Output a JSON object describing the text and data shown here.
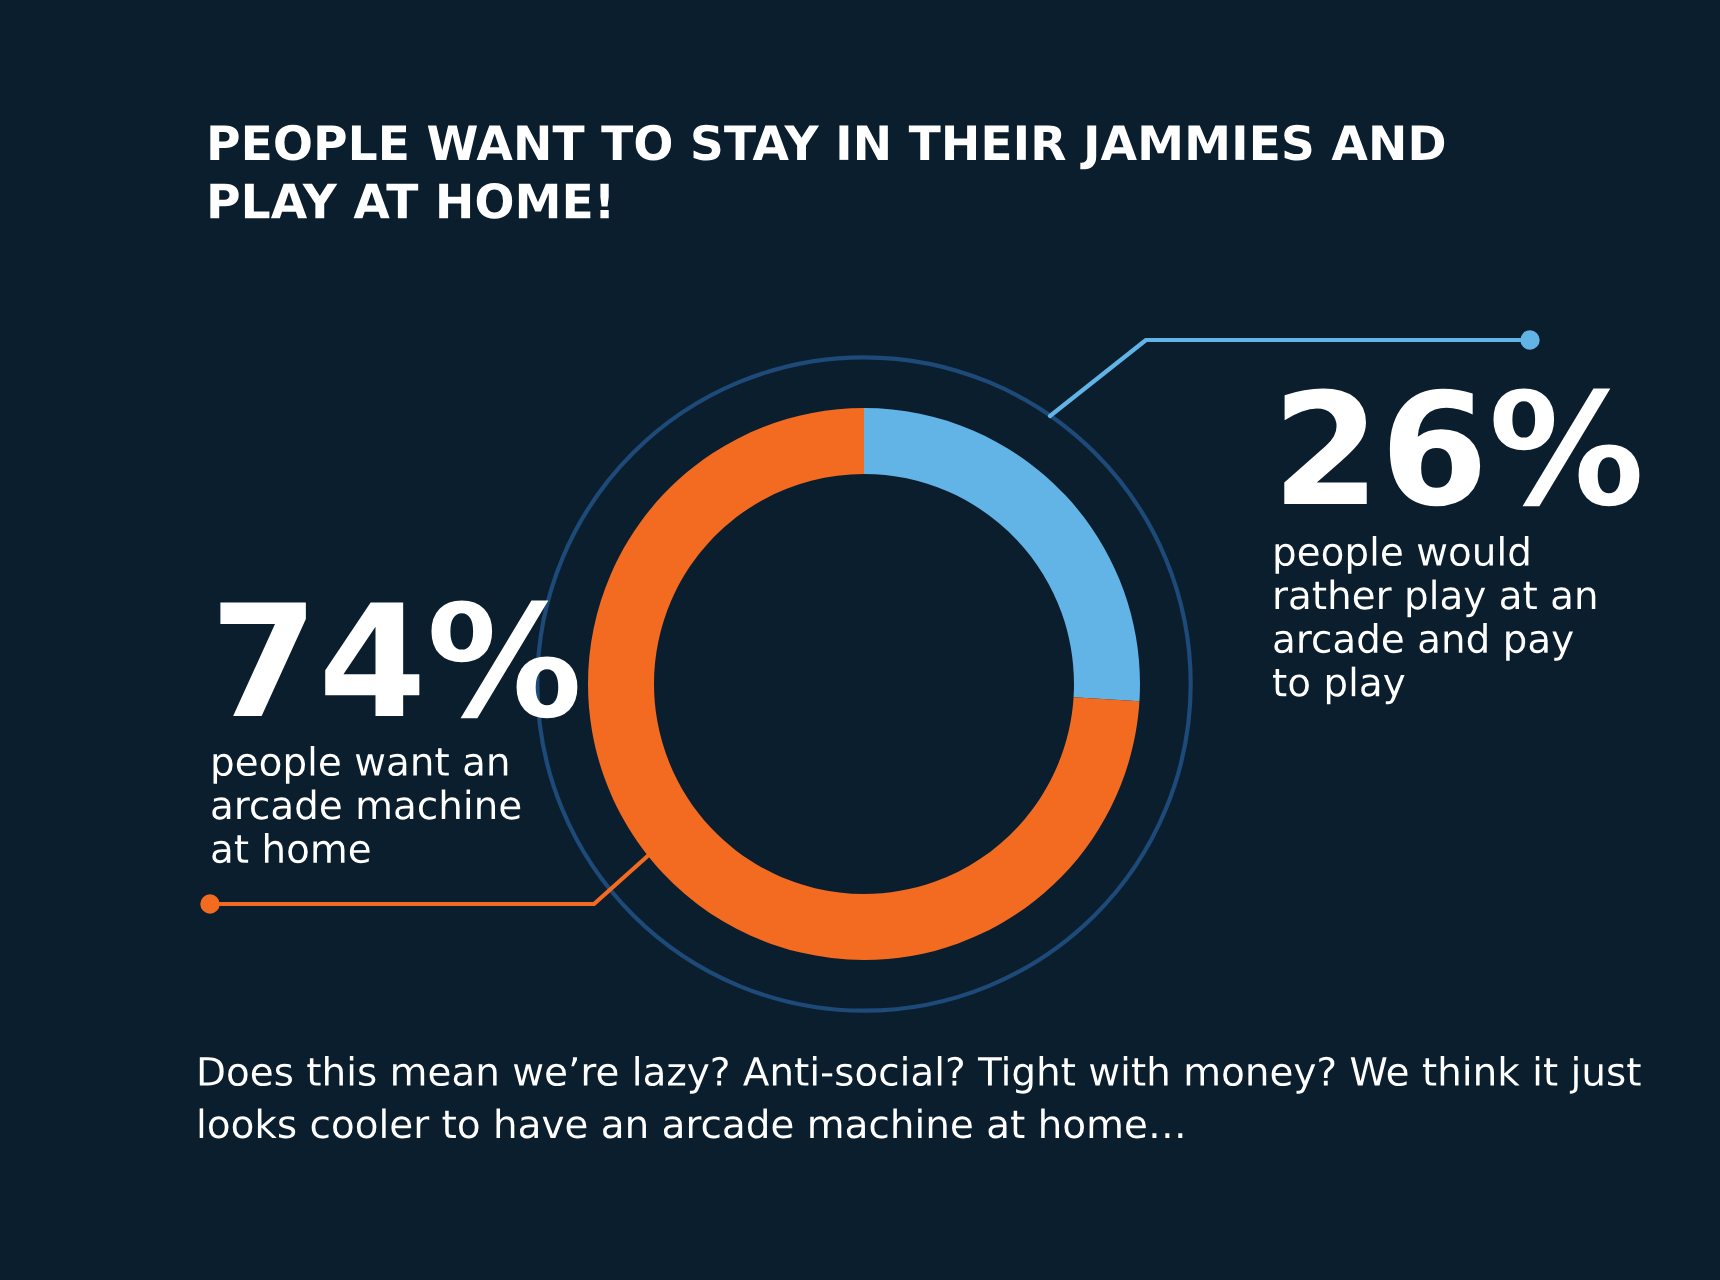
{
  "chart_data": {
    "type": "donut",
    "title": "PEOPLE WANT TO STAY IN THEIR JAMMIES AND\nPLAY AT HOME!",
    "categories": [
      "people would\nrather play at an\narcade and pay\nto play",
      "people want an\narcade machine\nat home"
    ],
    "values": [
      26,
      74
    ],
    "colors": [
      "#62b3e6",
      "#f26b21"
    ],
    "value_labels": [
      "26%",
      "74%"
    ],
    "annotations": [
      "Does this mean we’re lazy? Anti-social? Tight with money? We think it just\nlooks cooler to have an arcade machine at home…"
    ]
  }
}
